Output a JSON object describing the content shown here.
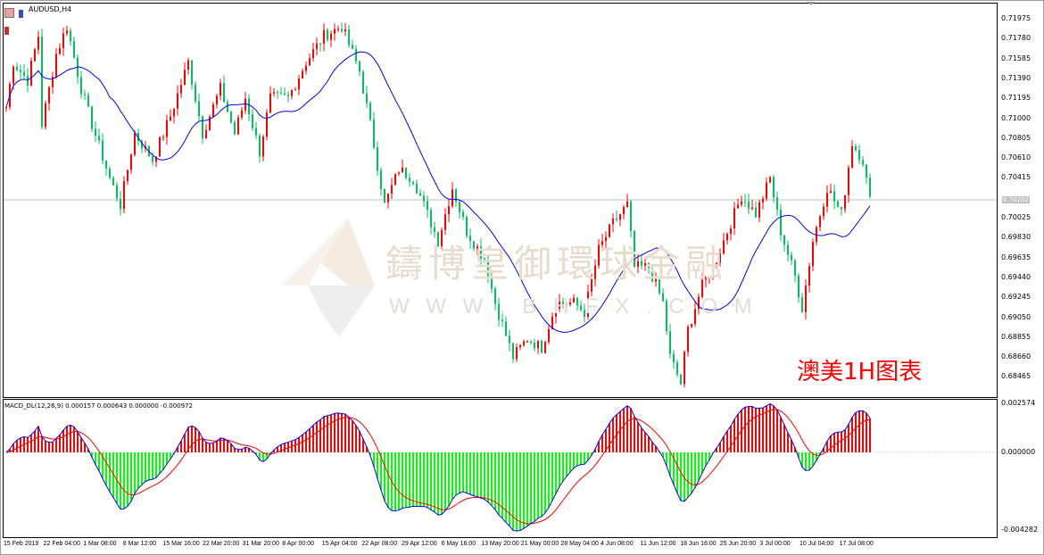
{
  "window": {
    "title": "AUDUSD,H4"
  },
  "watermark": {
    "name": "鑄博皇御環球金融",
    "url": "W W W . B H F X . C O M"
  },
  "annotation": "澳美1H图表",
  "current_price": "0.70202",
  "price_axis": [
    "0.71975",
    "0.71780",
    "0.71585",
    "0.71390",
    "0.71195",
    "0.71000",
    "0.70805",
    "0.70610",
    "0.70415",
    "0.70025",
    "0.69830",
    "0.69635",
    "0.69440",
    "0.69245",
    "0.69050",
    "0.68855",
    "0.68660",
    "0.68465"
  ],
  "macd": {
    "label": "MACD_DL(12,26,9) 0.000157 0.000643 0.000000 -0.000972",
    "axis": [
      "0.002574",
      "0.000000",
      "-0.004282"
    ]
  },
  "time_axis": [
    "15 Feb 2019",
    "22 Feb 04:00",
    "1 Mar 08:00",
    "8 Mar 12:00",
    "15 Mar 16:00",
    "22 Mar 20:00",
    "31 Mar 20:00",
    "8 Apr 00:00",
    "15 Apr 04:00",
    "22 Apr 08:00",
    "29 Apr 12:00",
    "6 May 16:00",
    "13 May 20:00",
    "21 May 00:00",
    "28 May 04:00",
    "4 Jun 08:00",
    "11 Jun 12:00",
    "18 Jun 16:00",
    "25 Jun 20:00",
    "3 Jul 00:00",
    "10 Jul 04:00",
    "17 Jul 08:00"
  ],
  "colors": {
    "bull": "#ff0000",
    "bear": "#00c060",
    "ma": "#0000ff",
    "hist_up": "#ff0000",
    "hist_down": "#00ff00",
    "signal": "#ff0000",
    "macd_line": "#0000ff"
  },
  "chart_data": {
    "type": "candlestick",
    "symbol": "AUDUSD",
    "timeframe": "H4",
    "ylim": [
      0.6835,
      0.7205
    ],
    "close_path_bar_price": [
      [
        0,
        0.7111
      ],
      [
        2,
        0.7155
      ],
      [
        6,
        0.7137
      ],
      [
        9,
        0.7181
      ],
      [
        10,
        0.7094
      ],
      [
        14,
        0.7163
      ],
      [
        17,
        0.719
      ],
      [
        21,
        0.7129
      ],
      [
        24,
        0.7094
      ],
      [
        29,
        0.7041
      ],
      [
        32,
        0.7015
      ],
      [
        36,
        0.7085
      ],
      [
        41,
        0.7059
      ],
      [
        46,
        0.7102
      ],
      [
        51,
        0.7155
      ],
      [
        55,
        0.7085
      ],
      [
        60,
        0.7129
      ],
      [
        64,
        0.7085
      ],
      [
        67,
        0.712
      ],
      [
        71,
        0.7067
      ],
      [
        74,
        0.712
      ],
      [
        79,
        0.712
      ],
      [
        84,
        0.7155
      ],
      [
        89,
        0.7181
      ],
      [
        94,
        0.719
      ],
      [
        99,
        0.7146
      ],
      [
        102,
        0.7094
      ],
      [
        106,
        0.7015
      ],
      [
        110,
        0.705
      ],
      [
        114,
        0.7041
      ],
      [
        118,
        0.7006
      ],
      [
        121,
        0.698
      ],
      [
        125,
        0.7032
      ],
      [
        129,
        0.6989
      ],
      [
        134,
        0.6962
      ],
      [
        137,
        0.6919
      ],
      [
        142,
        0.6866
      ],
      [
        146,
        0.6884
      ],
      [
        150,
        0.6875
      ],
      [
        154,
        0.6919
      ],
      [
        159,
        0.6919
      ],
      [
        162,
        0.691
      ],
      [
        166,
        0.6971
      ],
      [
        170,
        0.6997
      ],
      [
        174,
        0.7015
      ],
      [
        176,
        0.6954
      ],
      [
        180,
        0.6954
      ],
      [
        184,
        0.6919
      ],
      [
        186,
        0.6866
      ],
      [
        189,
        0.684
      ],
      [
        191,
        0.6893
      ],
      [
        195,
        0.6936
      ],
      [
        199,
        0.6962
      ],
      [
        202,
        0.6989
      ],
      [
        206,
        0.7024
      ],
      [
        210,
        0.7006
      ],
      [
        214,
        0.7041
      ],
      [
        217,
        0.6989
      ],
      [
        221,
        0.6945
      ],
      [
        223,
        0.6914
      ],
      [
        226,
        0.698
      ],
      [
        230,
        0.7032
      ],
      [
        234,
        0.7006
      ],
      [
        237,
        0.7076
      ],
      [
        240,
        0.7059
      ],
      [
        242,
        0.7019
      ]
    ]
  }
}
